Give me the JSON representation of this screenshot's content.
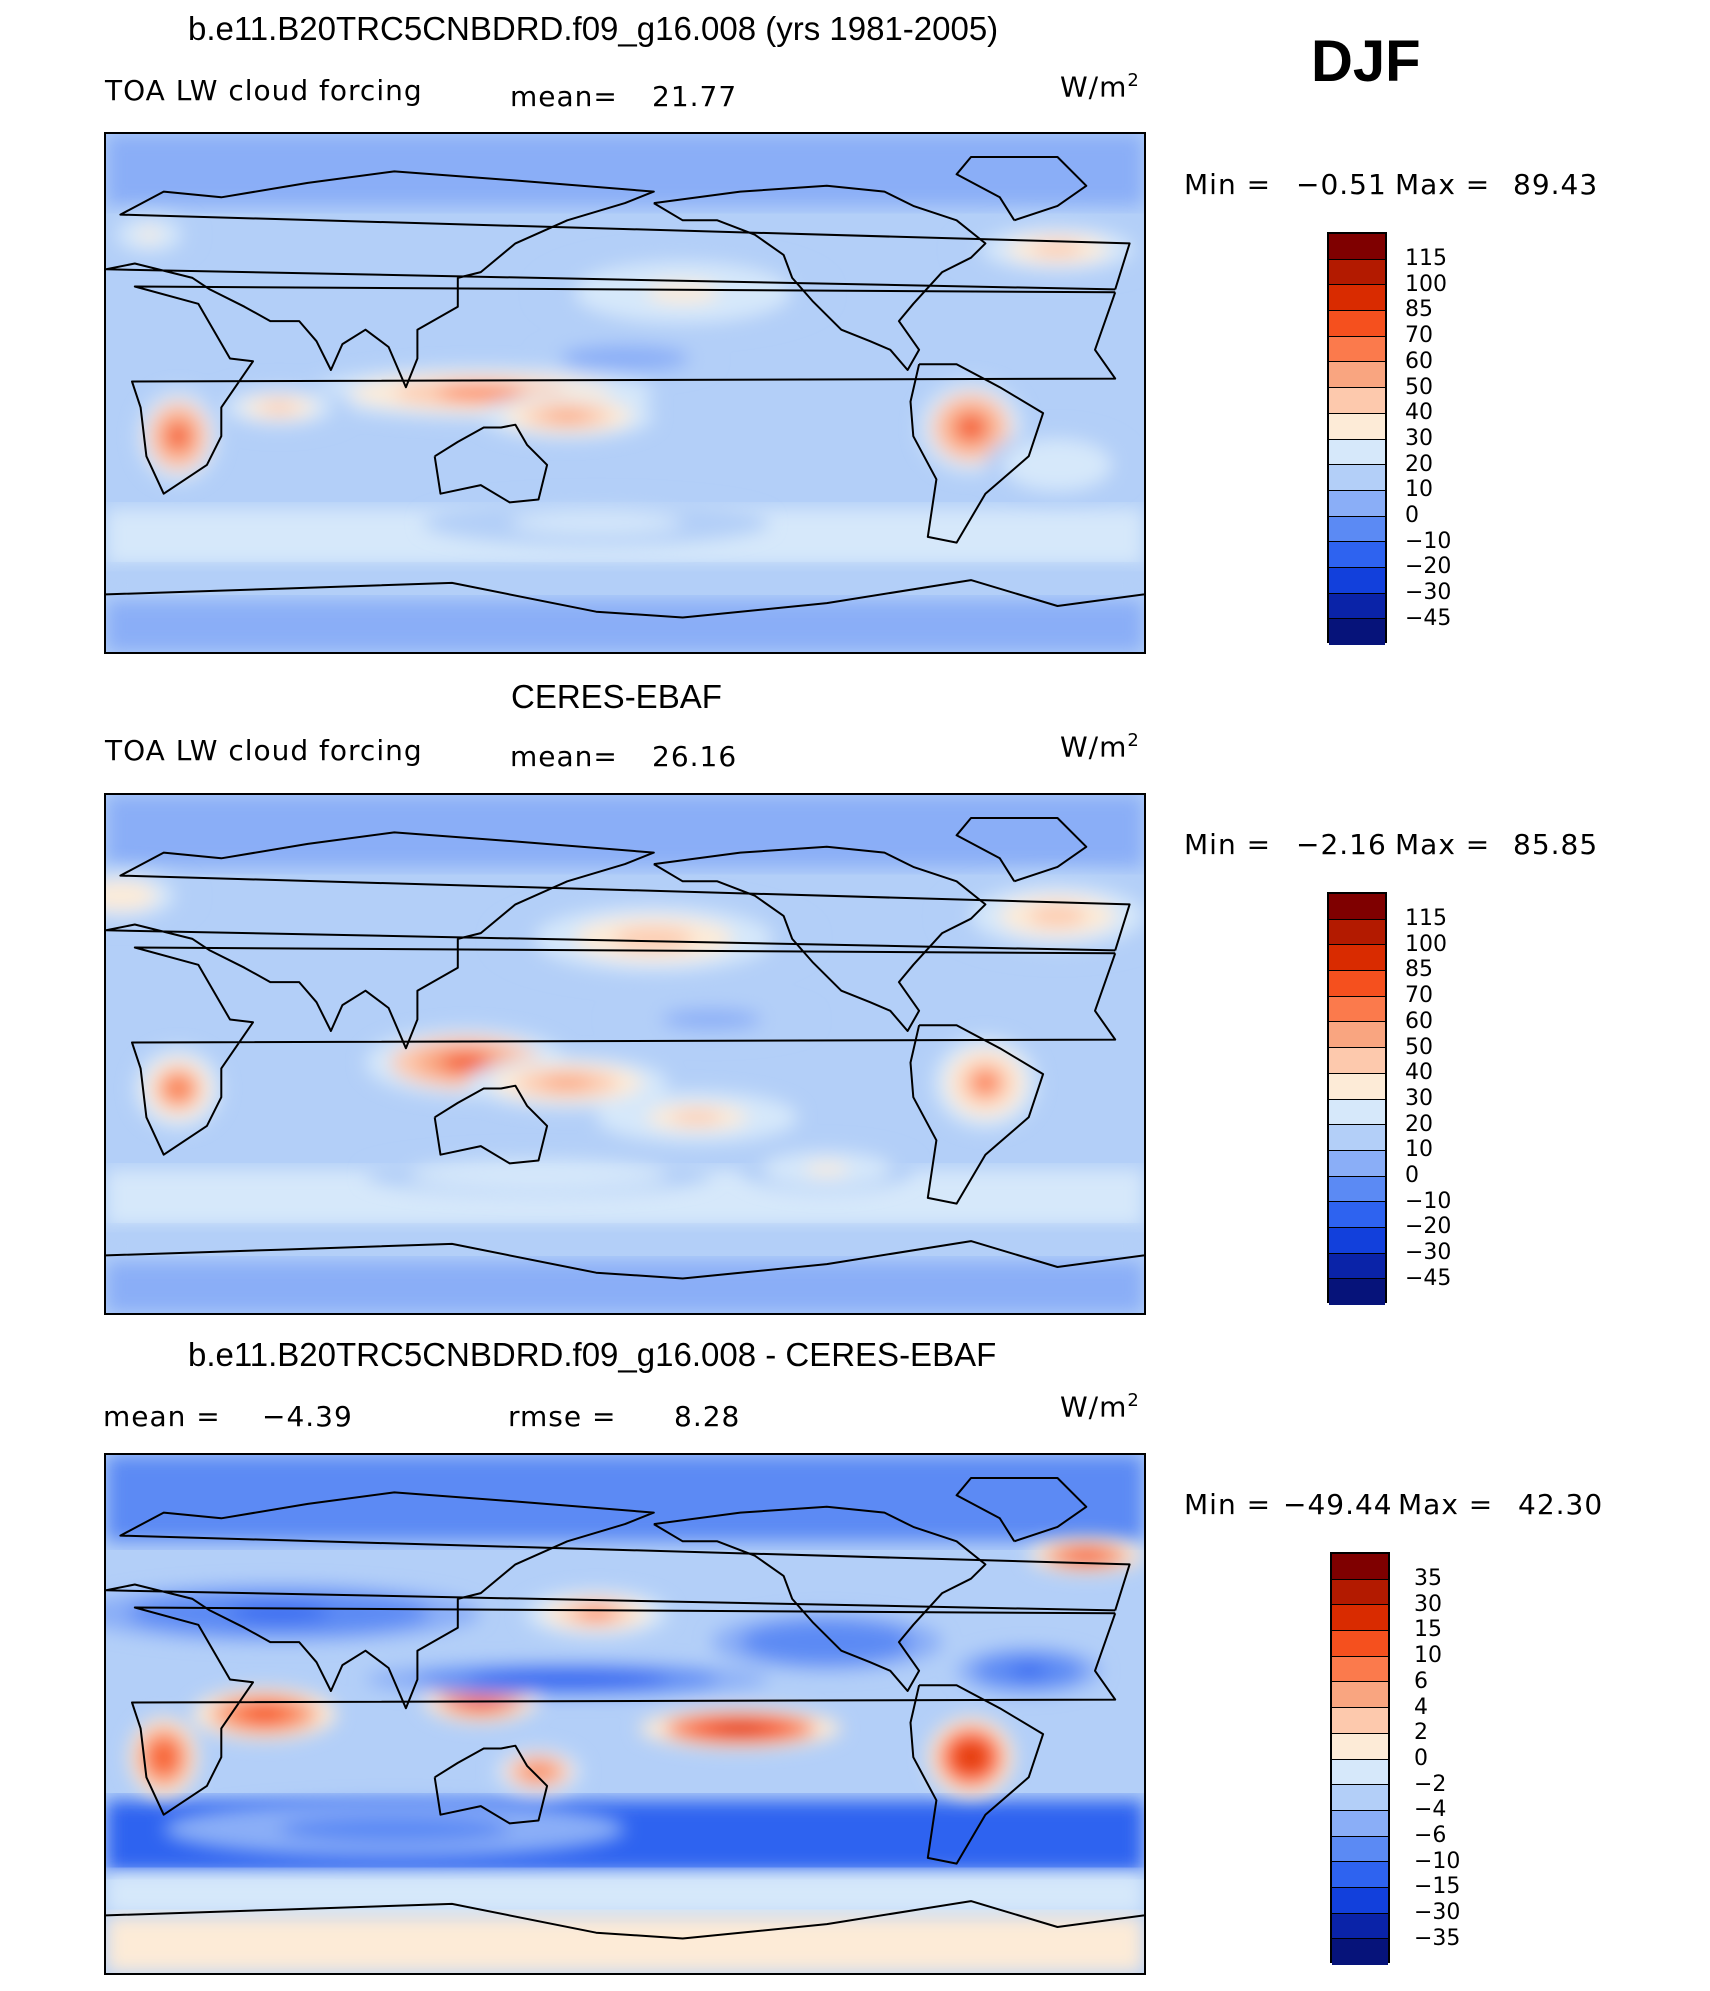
{
  "season": "DJF",
  "units": "W/m",
  "units_exp": "2",
  "panels": [
    {
      "title": "b.e11.B20TRC5CNBDRD.f09_g16.008 (yrs 1981-2005)",
      "left_label": "TOA LW cloud forcing",
      "mid_label": "mean=",
      "mid_value": "21.77",
      "min_label": "Min =",
      "min_value": "−0.51",
      "max_label": "Max =",
      "max_value": "89.43",
      "levels": [
        "115",
        "100",
        "85",
        "70",
        "60",
        "50",
        "40",
        "30",
        "20",
        "10",
        "0",
        "−10",
        "−20",
        "−30",
        "−45"
      ]
    },
    {
      "title": "CERES-EBAF",
      "left_label": "TOA LW cloud forcing",
      "mid_label": "mean=",
      "mid_value": "26.16",
      "min_label": "Min =",
      "min_value": "−2.16",
      "max_label": "Max =",
      "max_value": "85.85",
      "levels": [
        "115",
        "100",
        "85",
        "70",
        "60",
        "50",
        "40",
        "30",
        "20",
        "10",
        "0",
        "−10",
        "−20",
        "−30",
        "−45"
      ]
    },
    {
      "title": "b.e11.B20TRC5CNBDRD.f09_g16.008 - CERES-EBAF",
      "left_label": "mean =",
      "left_value": "−4.39",
      "mid_label": "rmse =",
      "mid_value": "8.28",
      "min_label": "Min =",
      "min_value": "−49.44",
      "max_label": "Max =",
      "max_value": "42.30",
      "levels": [
        "35",
        "30",
        "15",
        "10",
        "6",
        "4",
        "2",
        "0",
        "−2",
        "−4",
        "−6",
        "−10",
        "−15",
        "−30",
        "−35"
      ]
    }
  ],
  "colormap": [
    "#7f0000",
    "#b31a00",
    "#d92b00",
    "#f5501e",
    "#fb7a4c",
    "#f9a580",
    "#fdc9ad",
    "#fdebd7",
    "#d6e8fa",
    "#b3cff8",
    "#8aaef7",
    "#5b8af4",
    "#2e63f0",
    "#1240dc",
    "#0a23a8",
    "#06137a"
  ],
  "chart_data": [
    {
      "type": "heatmap",
      "title": "b.e11.B20TRC5CNBDRD.f09_g16.008 (yrs 1981-2005)",
      "field": "TOA LW cloud forcing",
      "units": "W/m2",
      "season": "DJF",
      "mean": 21.77,
      "min": -0.51,
      "max": 89.43,
      "contour_levels": [
        -45,
        -30,
        -20,
        -10,
        0,
        10,
        20,
        30,
        40,
        50,
        60,
        70,
        85,
        100,
        115
      ],
      "blobs": [
        {
          "lon": 25,
          "lat": -15,
          "rx": 14,
          "ry": 16,
          "value": 75
        },
        {
          "lon": 130,
          "lat": 0,
          "rx": 60,
          "ry": 9,
          "value": 60
        },
        {
          "lon": 160,
          "lat": -8,
          "rx": 30,
          "ry": 8,
          "value": 55
        },
        {
          "lon": 300,
          "lat": -12,
          "rx": 18,
          "ry": 16,
          "value": 70
        },
        {
          "lon": 200,
          "lat": 35,
          "rx": 50,
          "ry": 14,
          "value": 35
        },
        {
          "lon": 330,
          "lat": 50,
          "rx": 35,
          "ry": 10,
          "value": 40
        },
        {
          "lon": 15,
          "lat": 55,
          "rx": 15,
          "ry": 8,
          "value": 32
        },
        {
          "lon": 330,
          "lat": -25,
          "rx": 25,
          "ry": 12,
          "value": 28
        },
        {
          "lon": 60,
          "lat": -5,
          "rx": 25,
          "ry": 8,
          "value": 40
        },
        {
          "lon": 170,
          "lat": -45,
          "rx": 60,
          "ry": 8,
          "value": 25
        },
        {
          "lon": 180,
          "lat": 12,
          "rx": 30,
          "ry": 6,
          "value": 5
        }
      ]
    },
    {
      "type": "heatmap",
      "title": "CERES-EBAF",
      "field": "TOA LW cloud forcing",
      "units": "W/m2",
      "season": "DJF",
      "mean": 26.16,
      "min": -2.16,
      "max": 85.85,
      "contour_levels": [
        -45,
        -30,
        -20,
        -10,
        0,
        10,
        20,
        30,
        40,
        50,
        60,
        70,
        85,
        100,
        115
      ],
      "blobs": [
        {
          "lon": 25,
          "lat": -12,
          "rx": 15,
          "ry": 14,
          "value": 65
        },
        {
          "lon": 125,
          "lat": -3,
          "rx": 35,
          "ry": 12,
          "value": 72
        },
        {
          "lon": 160,
          "lat": -10,
          "rx": 35,
          "ry": 9,
          "value": 55
        },
        {
          "lon": 205,
          "lat": -22,
          "rx": 35,
          "ry": 9,
          "value": 45
        },
        {
          "lon": 305,
          "lat": -10,
          "rx": 18,
          "ry": 16,
          "value": 62
        },
        {
          "lon": 190,
          "lat": 40,
          "rx": 55,
          "ry": 15,
          "value": 40
        },
        {
          "lon": 330,
          "lat": 48,
          "rx": 40,
          "ry": 14,
          "value": 42
        },
        {
          "lon": 5,
          "lat": 55,
          "rx": 25,
          "ry": 10,
          "value": 38
        },
        {
          "lon": 250,
          "lat": -40,
          "rx": 30,
          "ry": 8,
          "value": 35
        },
        {
          "lon": 150,
          "lat": -42,
          "rx": 60,
          "ry": 7,
          "value": 28
        },
        {
          "lon": 210,
          "lat": 12,
          "rx": 35,
          "ry": 7,
          "value": 8
        }
      ]
    },
    {
      "type": "heatmap",
      "title": "b.e11.B20TRC5CNBDRD.f09_g16.008 - CERES-EBAF",
      "units": "W/m2",
      "season": "DJF",
      "mean": -4.39,
      "rmse": 8.28,
      "min": -49.44,
      "max": 42.3,
      "contour_levels": [
        -35,
        -30,
        -15,
        -10,
        -6,
        -4,
        -2,
        0,
        2,
        4,
        6,
        10,
        15,
        30,
        35
      ],
      "blobs": [
        {
          "lon": 20,
          "lat": -15,
          "rx": 12,
          "ry": 14,
          "value": 14
        },
        {
          "lon": 55,
          "lat": 0,
          "rx": 25,
          "ry": 9,
          "value": 12
        },
        {
          "lon": 130,
          "lat": 5,
          "rx": 20,
          "ry": 8,
          "value": 12
        },
        {
          "lon": 150,
          "lat": -20,
          "rx": 15,
          "ry": 8,
          "value": 8
        },
        {
          "lon": 220,
          "lat": -5,
          "rx": 35,
          "ry": 7,
          "value": 16
        },
        {
          "lon": 300,
          "lat": -15,
          "rx": 15,
          "ry": 14,
          "value": 15
        },
        {
          "lon": 340,
          "lat": 55,
          "rx": 20,
          "ry": 6,
          "value": 14
        },
        {
          "lon": 170,
          "lat": 35,
          "rx": 25,
          "ry": 8,
          "value": 6
        },
        {
          "lon": 160,
          "lat": 12,
          "rx": 70,
          "ry": 6,
          "value": -14
        },
        {
          "lon": 60,
          "lat": 35,
          "rx": 70,
          "ry": 10,
          "value": -12
        },
        {
          "lon": 100,
          "lat": -40,
          "rx": 80,
          "ry": 10,
          "value": -9
        },
        {
          "lon": 250,
          "lat": 25,
          "rx": 40,
          "ry": 10,
          "value": -10
        },
        {
          "lon": 320,
          "lat": 15,
          "rx": 25,
          "ry": 8,
          "value": -12
        }
      ]
    }
  ]
}
